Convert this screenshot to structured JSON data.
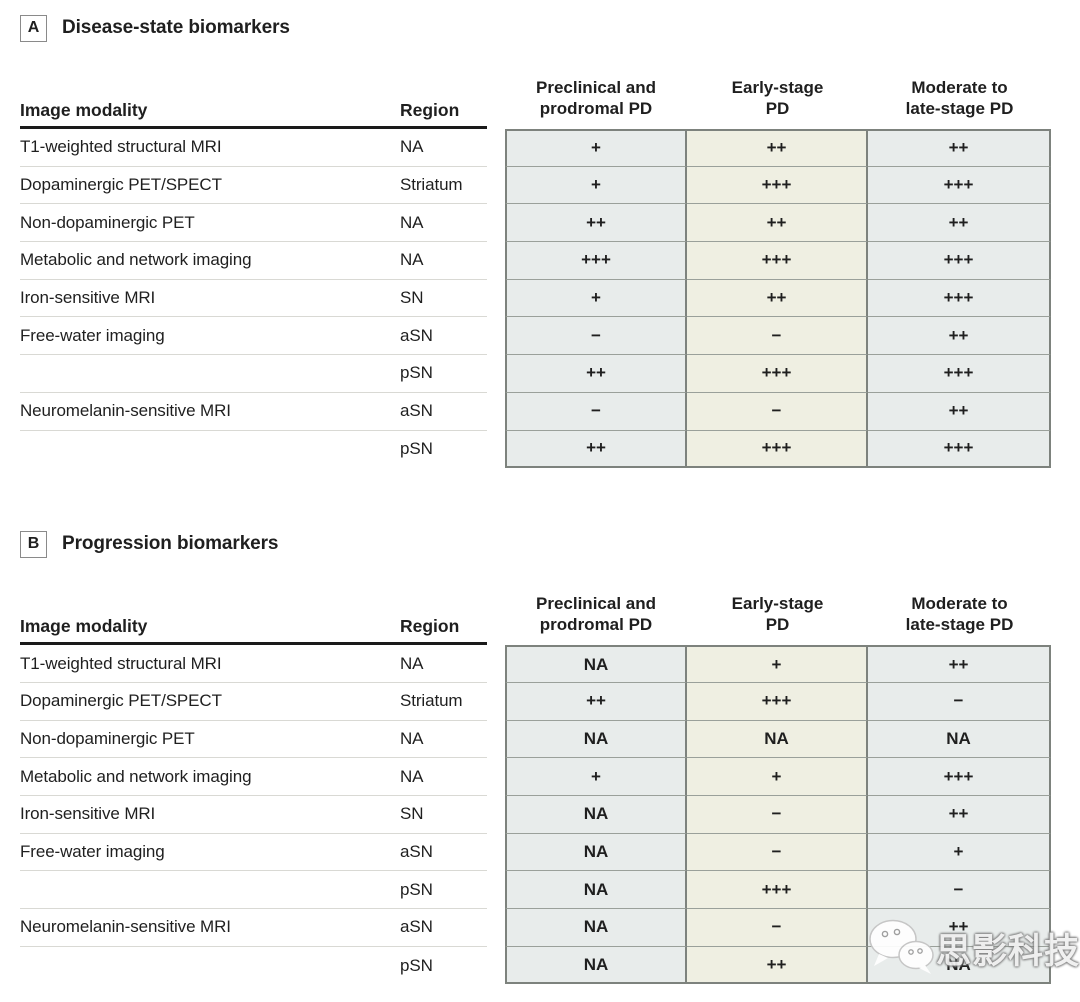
{
  "table_headers": {
    "modality": "Image modality",
    "region": "Region"
  },
  "stage_headers": [
    {
      "line1": "Preclinical and",
      "line2": "prodromal PD"
    },
    {
      "line1": "Early-stage",
      "line2": "PD"
    },
    {
      "line1": "Moderate to",
      "line2": "late-stage PD"
    }
  ],
  "panels": [
    {
      "label": "A",
      "title": "Disease-state biomarkers",
      "rows": [
        {
          "modality": "T1-weighted structural MRI",
          "region": "NA",
          "values": [
            "+",
            "++",
            "++"
          ]
        },
        {
          "modality": "Dopaminergic PET/SPECT",
          "region": "Striatum",
          "values": [
            "+",
            "+++",
            "+++"
          ]
        },
        {
          "modality": "Non-dopaminergic PET",
          "region": "NA",
          "values": [
            "++",
            "++",
            "++"
          ]
        },
        {
          "modality": "Metabolic and network imaging",
          "region": "NA",
          "values": [
            "+++",
            "+++",
            "+++"
          ]
        },
        {
          "modality": "Iron-sensitive MRI",
          "region": "SN",
          "values": [
            "+",
            "++",
            "+++"
          ]
        },
        {
          "modality": "Free-water imaging",
          "region": "aSN",
          "values": [
            "−",
            "−",
            "++"
          ]
        },
        {
          "modality": "",
          "region": "pSN",
          "values": [
            "++",
            "+++",
            "+++"
          ]
        },
        {
          "modality": "Neuromelanin-sensitive MRI",
          "region": "aSN",
          "values": [
            "−",
            "−",
            "++"
          ]
        },
        {
          "modality": "",
          "region": "pSN",
          "values": [
            "++",
            "+++",
            "+++"
          ]
        }
      ]
    },
    {
      "label": "B",
      "title": "Progression biomarkers",
      "rows": [
        {
          "modality": "T1-weighted structural MRI",
          "region": "NA",
          "values": [
            "NA",
            "+",
            "++"
          ]
        },
        {
          "modality": "Dopaminergic PET/SPECT",
          "region": "Striatum",
          "values": [
            "++",
            "+++",
            "−"
          ]
        },
        {
          "modality": "Non-dopaminergic PET",
          "region": "NA",
          "values": [
            "NA",
            "NA",
            "NA"
          ]
        },
        {
          "modality": "Metabolic and network imaging",
          "region": "NA",
          "values": [
            "+",
            "+",
            "+++"
          ]
        },
        {
          "modality": "Iron-sensitive MRI",
          "region": "SN",
          "values": [
            "NA",
            "−",
            "++"
          ]
        },
        {
          "modality": "Free-water imaging",
          "region": "aSN",
          "values": [
            "NA",
            "−",
            "+"
          ]
        },
        {
          "modality": "",
          "region": "pSN",
          "values": [
            "NA",
            "+++",
            "−"
          ]
        },
        {
          "modality": "Neuromelanin-sensitive MRI",
          "region": "aSN",
          "values": [
            "NA",
            "−",
            "++"
          ]
        },
        {
          "modality": "",
          "region": "pSN",
          "values": [
            "NA",
            "++",
            "NA"
          ]
        }
      ]
    }
  ],
  "watermark": {
    "icon": "wechat-icon",
    "text": "思影科技"
  },
  "colors": {
    "cell_default": "#e8eceb",
    "cell_highlight": "#efefe2",
    "vborder": "#7d827d",
    "hborder": "#9aa09a",
    "header_rule": "#1a1a1a",
    "row_rule": "#d9d9d4",
    "text": "#1f1f1f"
  }
}
